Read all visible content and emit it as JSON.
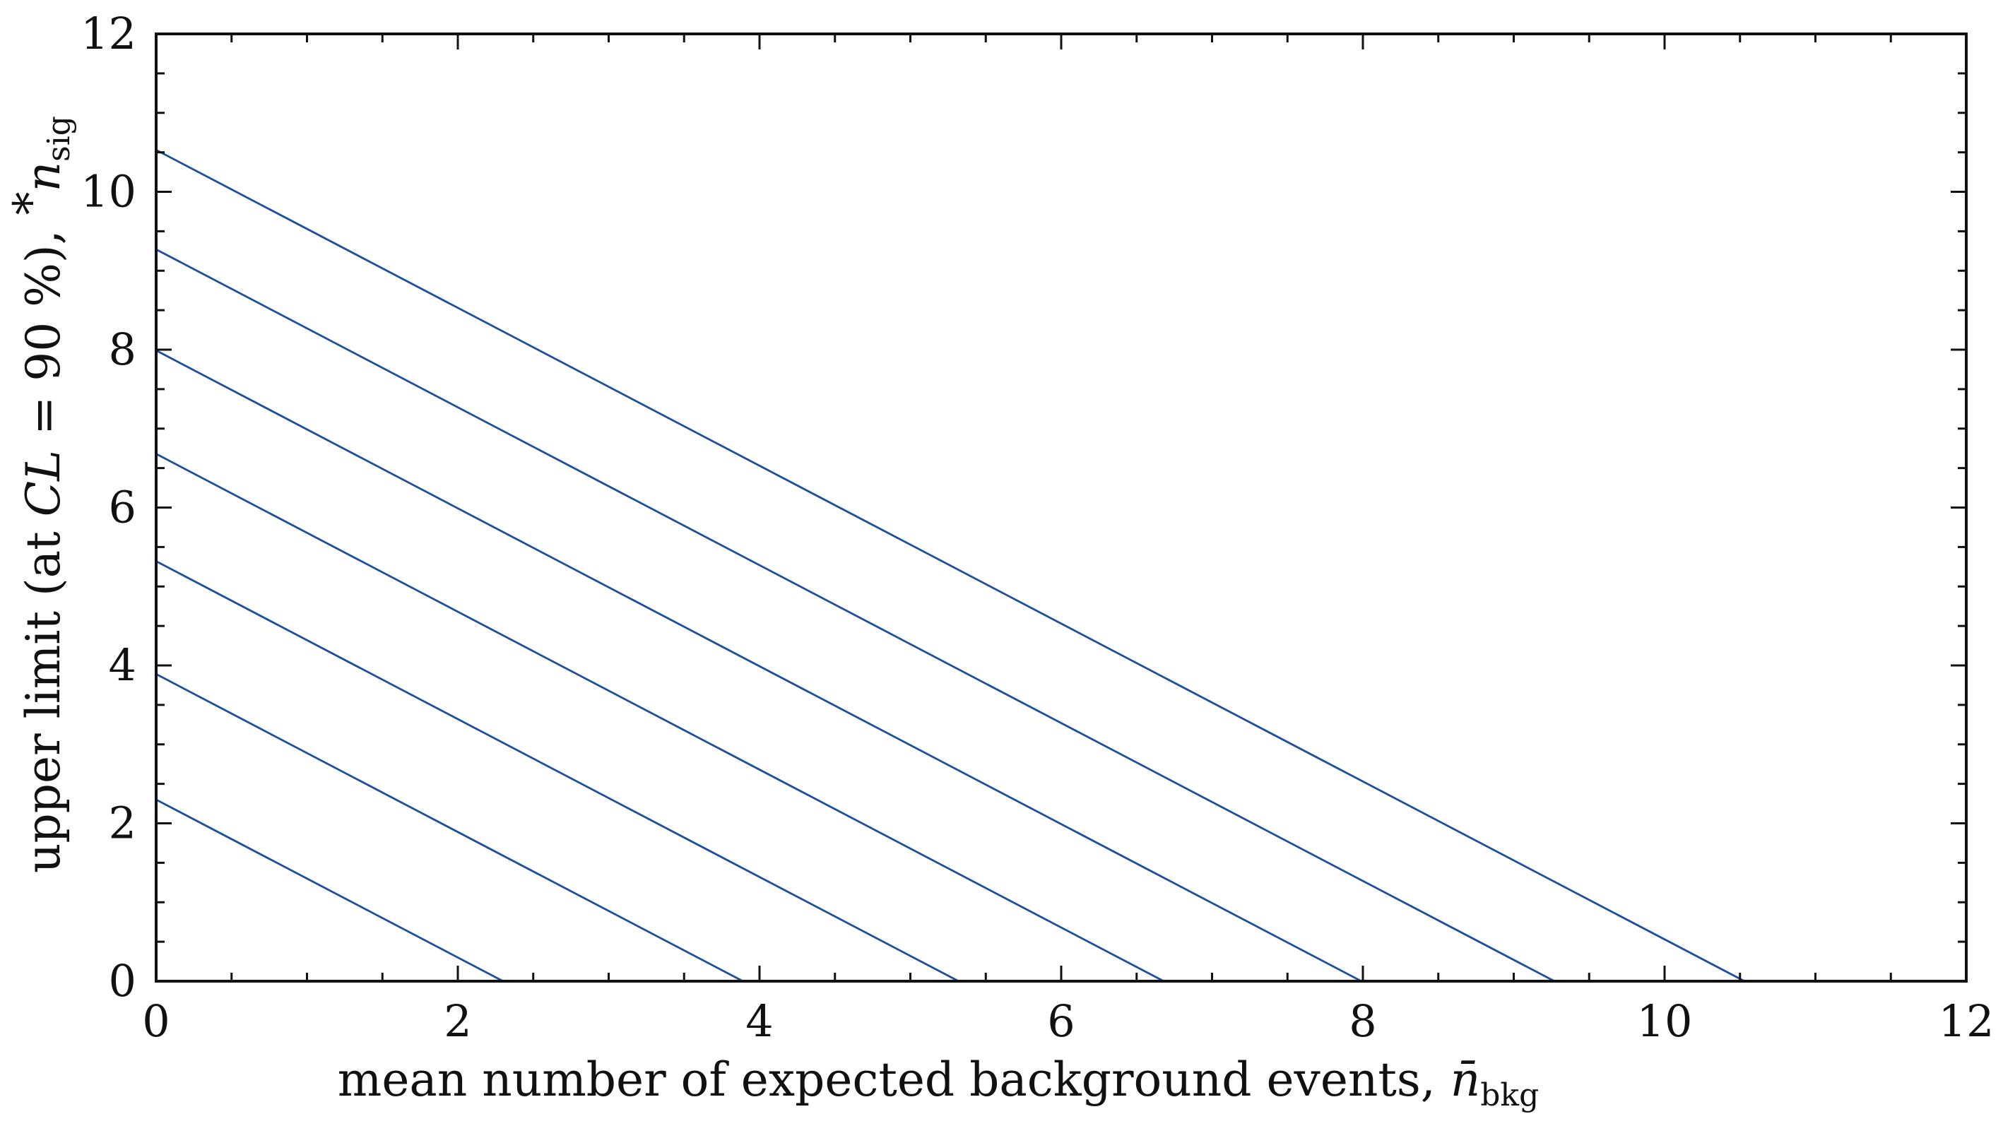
{
  "chart_data": {
    "type": "line",
    "title": "",
    "xlabel": {
      "text": "mean number of expected background events, ",
      "symbol": "n̄",
      "subscript": "bkg"
    },
    "ylabel": {
      "prefix": "upper limit (at ",
      "cl_symbol": "CL",
      "cl_value": " = 90 %), ",
      "star": "*",
      "symbol": "n",
      "subscript": "sig"
    },
    "xlim": [
      0,
      12
    ],
    "ylim": [
      0,
      12
    ],
    "x_ticks": [
      0,
      2,
      4,
      6,
      8,
      10,
      12
    ],
    "y_ticks": [
      0,
      2,
      4,
      6,
      8,
      10,
      12
    ],
    "x_tick_labels": [
      "0",
      "2",
      "4",
      "6",
      "8",
      "10",
      "12"
    ],
    "y_tick_labels": [
      "0",
      "2",
      "4",
      "6",
      "8",
      "10",
      "12"
    ],
    "minor_ticks_per_major": 4,
    "grid": false,
    "line_color": "#1f4e9c",
    "series": [
      {
        "x": [
          0,
          2.3
        ],
        "y": [
          2.3,
          0
        ]
      },
      {
        "x": [
          0,
          3.89
        ],
        "y": [
          3.89,
          0
        ]
      },
      {
        "x": [
          0,
          5.32
        ],
        "y": [
          5.32,
          0
        ]
      },
      {
        "x": [
          0,
          6.68
        ],
        "y": [
          6.68,
          0
        ]
      },
      {
        "x": [
          0,
          7.99
        ],
        "y": [
          7.99,
          0
        ]
      },
      {
        "x": [
          0,
          9.27
        ],
        "y": [
          9.27,
          0
        ]
      },
      {
        "x": [
          0,
          10.53
        ],
        "y": [
          10.53,
          0
        ]
      }
    ]
  }
}
